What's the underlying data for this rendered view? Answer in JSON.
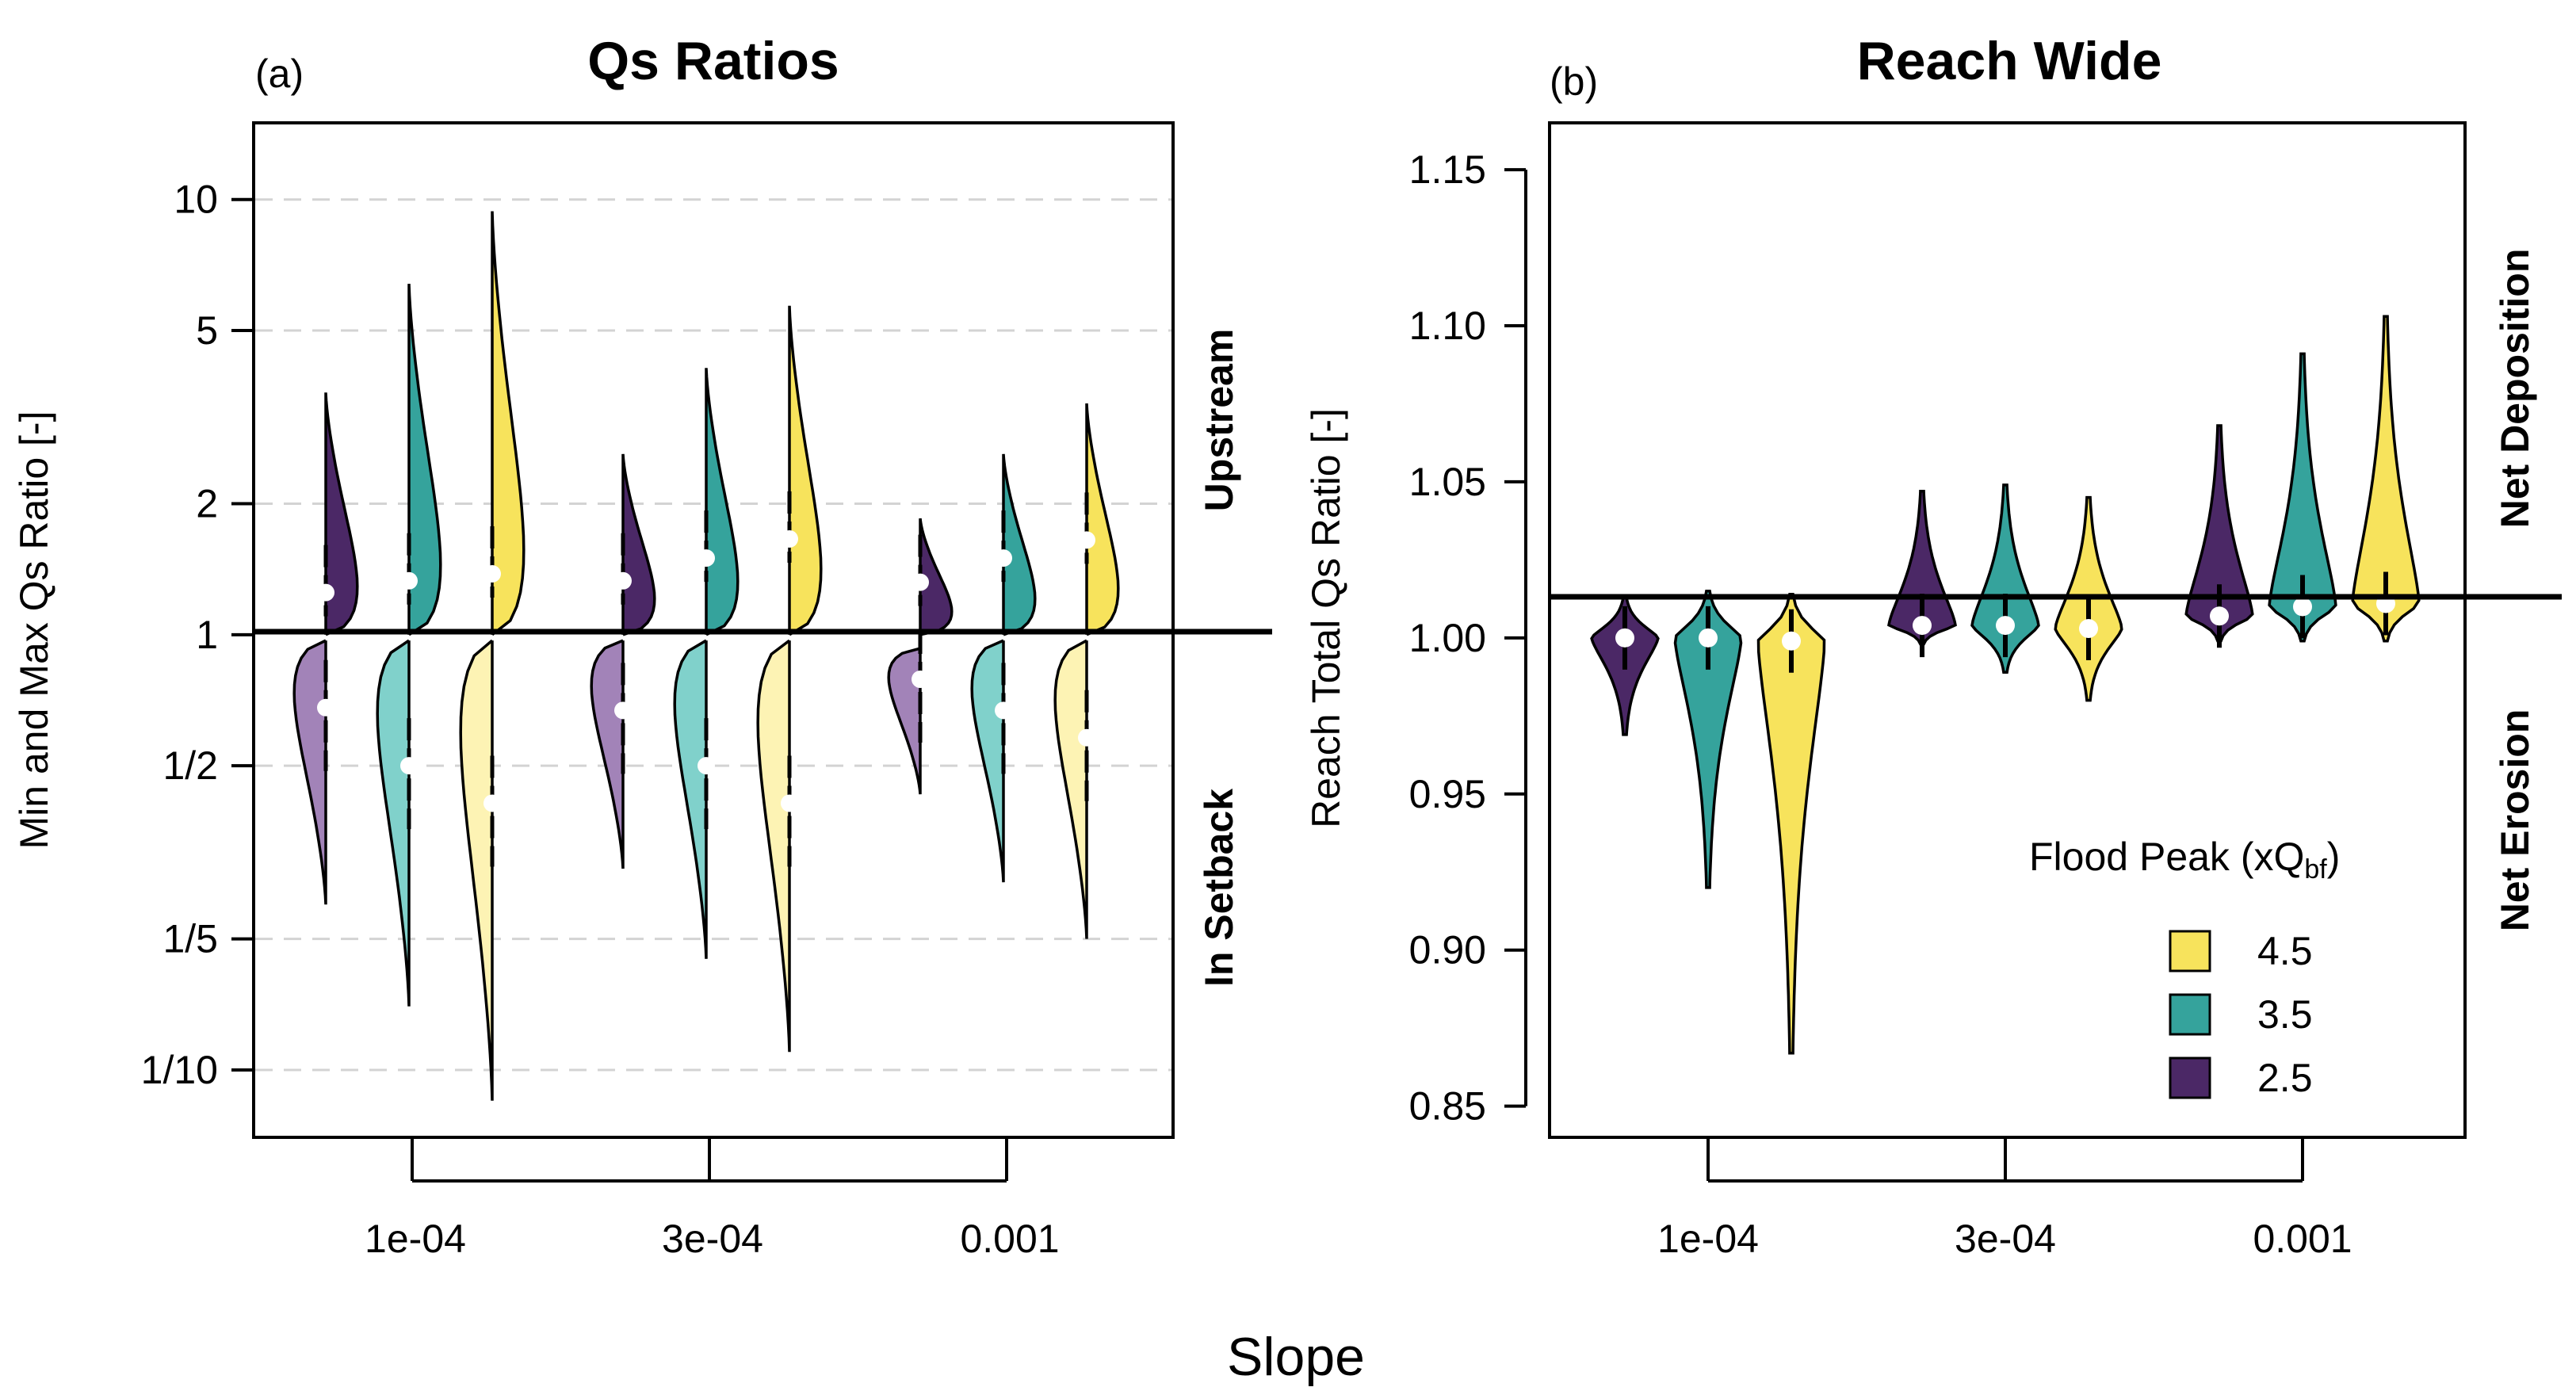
{
  "figure": {
    "xlabel": "Slope"
  },
  "colors": {
    "p25": "#4b2866",
    "p35": "#35a39c",
    "p45": "#f7e35c",
    "p25_light": "#a283b8",
    "p35_light": "#80d1cb",
    "p45_light": "#fdf3b4",
    "grid": "#d3d3d3",
    "median": "#ffffff"
  },
  "chart_data": [
    {
      "panel_label": "(a)",
      "title": "Qs Ratios",
      "type": "violin",
      "ylabel": "Min and Max Qs Ratio [-]",
      "y_scale": "log",
      "ylim": [
        0.07,
        15
      ],
      "yticks": [
        {
          "value": 10,
          "label": "10"
        },
        {
          "value": 5,
          "label": "5"
        },
        {
          "value": 2,
          "label": "2"
        },
        {
          "value": 1,
          "label": "1"
        },
        {
          "value": 0.5,
          "label": "1/2"
        },
        {
          "value": 0.2,
          "label": "1/5"
        },
        {
          "value": 0.1,
          "label": "1/10"
        }
      ],
      "grid": true,
      "reference_line": 1,
      "categories": [
        "1e-04",
        "3e-04",
        "0.001"
      ],
      "side_labels": {
        "upper": "Upstream",
        "lower": "In Setback"
      },
      "series": [
        {
          "name": "2.5",
          "upstream": [
            {
              "min": 1.0,
              "max": 3.6,
              "median": 1.25
            },
            {
              "min": 1.0,
              "max": 2.6,
              "median": 1.33
            },
            {
              "min": 1.0,
              "max": 1.85,
              "median": 1.32
            }
          ],
          "setback": [
            {
              "min": 0.24,
              "max": 0.97,
              "median": 0.68
            },
            {
              "min": 0.29,
              "max": 0.97,
              "median": 0.67
            },
            {
              "min": 0.43,
              "max": 0.93,
              "median": 0.79
            }
          ]
        },
        {
          "name": "3.5",
          "upstream": [
            {
              "min": 1.0,
              "max": 6.4,
              "median": 1.33
            },
            {
              "min": 1.0,
              "max": 4.1,
              "median": 1.5
            },
            {
              "min": 1.0,
              "max": 2.6,
              "median": 1.5
            }
          ],
          "setback": [
            {
              "min": 0.14,
              "max": 0.97,
              "median": 0.5
            },
            {
              "min": 0.18,
              "max": 0.97,
              "median": 0.5
            },
            {
              "min": 0.27,
              "max": 0.97,
              "median": 0.67
            }
          ]
        },
        {
          "name": "4.5",
          "upstream": [
            {
              "min": 1.0,
              "max": 9.4,
              "median": 1.38
            },
            {
              "min": 1.0,
              "max": 5.7,
              "median": 1.66
            },
            {
              "min": 1.0,
              "max": 3.4,
              "median": 1.65
            }
          ],
          "setback": [
            {
              "min": 0.085,
              "max": 0.97,
              "median": 0.41
            },
            {
              "min": 0.11,
              "max": 0.97,
              "median": 0.41
            },
            {
              "min": 0.2,
              "max": 0.97,
              "median": 0.58
            }
          ]
        }
      ]
    },
    {
      "panel_label": "(b)",
      "title": "Reach Wide",
      "type": "violin",
      "ylabel": "Reach Total Qs Ratio [-]",
      "y_scale": "linear",
      "ylim": [
        0.84,
        1.165
      ],
      "yticks": [
        {
          "value": 1.15,
          "label": "1.15"
        },
        {
          "value": 1.1,
          "label": "1.10"
        },
        {
          "value": 1.05,
          "label": "1.05"
        },
        {
          "value": 1.0,
          "label": "1.00"
        },
        {
          "value": 0.95,
          "label": "0.95"
        },
        {
          "value": 0.9,
          "label": "0.90"
        },
        {
          "value": 0.85,
          "label": "0.85"
        }
      ],
      "grid": false,
      "reference_line": 1,
      "categories": [
        "1e-04",
        "3e-04",
        "0.001"
      ],
      "side_labels": {
        "upper": "Net Deposition",
        "lower": "Net Erosion"
      },
      "legend": {
        "title": "Flood Peak (xQ",
        "title_sub": "bf",
        "title_end": ")",
        "entries": [
          "4.5",
          "3.5",
          "2.5"
        ],
        "placement": "bottom-right"
      },
      "series": [
        {
          "name": "2.5",
          "values": [
            {
              "min": 0.969,
              "max": 1.013,
              "median": 1.0
            },
            {
              "min": 0.998,
              "max": 1.047,
              "median": 1.004
            },
            {
              "min": 0.999,
              "max": 1.068,
              "median": 1.007
            }
          ]
        },
        {
          "name": "3.5",
          "values": [
            {
              "min": 0.92,
              "max": 1.015,
              "median": 1.0
            },
            {
              "min": 0.989,
              "max": 1.049,
              "median": 1.004
            },
            {
              "min": 0.999,
              "max": 1.091,
              "median": 1.01
            }
          ]
        },
        {
          "name": "4.5",
          "values": [
            {
              "min": 0.867,
              "max": 1.014,
              "median": 0.999
            },
            {
              "min": 0.98,
              "max": 1.045,
              "median": 1.003
            },
            {
              "min": 0.999,
              "max": 1.103,
              "median": 1.011
            }
          ]
        }
      ]
    }
  ]
}
